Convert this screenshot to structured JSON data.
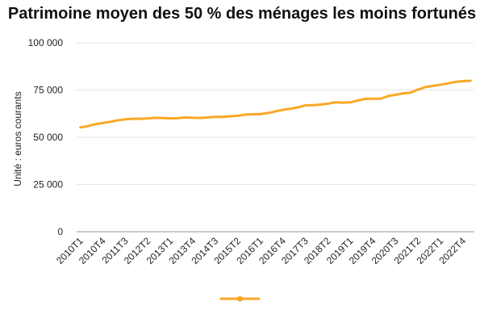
{
  "chart_data": {
    "type": "line",
    "title": "Patrimoine moyen des 50 % des ménages les moins fortunés",
    "xlabel": "",
    "ylabel": "Unité : euros courants",
    "ylim": [
      0,
      100000
    ],
    "y_ticks": [
      0,
      25000,
      50000,
      75000,
      100000
    ],
    "y_tick_labels": [
      "0",
      "25 000",
      "50 000",
      "75 000",
      "100 000"
    ],
    "x_tick_labels": [
      "2010T1",
      "2010T4",
      "2011T3",
      "2012T2",
      "2013T1",
      "2013T4",
      "2014T3",
      "2015T2",
      "2016T1",
      "2016T4",
      "2017T3",
      "2018T2",
      "2019T1",
      "2019T4",
      "2020T3",
      "2021T2",
      "2022T1",
      "2022T4"
    ],
    "grid": true,
    "legend": "bottom",
    "colors": {
      "line": "#F9A825",
      "grid": "#E6E6E6",
      "axis": "#999999"
    },
    "categories": [
      "2010T1",
      "2010T2",
      "2010T3",
      "2010T4",
      "2011T1",
      "2011T2",
      "2011T3",
      "2011T4",
      "2012T1",
      "2012T2",
      "2012T3",
      "2012T4",
      "2013T1",
      "2013T2",
      "2013T3",
      "2013T4",
      "2014T1",
      "2014T2",
      "2014T3",
      "2014T4",
      "2015T1",
      "2015T2",
      "2015T3",
      "2015T4",
      "2016T1",
      "2016T2",
      "2016T3",
      "2016T4",
      "2017T1",
      "2017T2",
      "2017T3",
      "2017T4",
      "2018T1",
      "2018T2",
      "2018T3",
      "2018T4",
      "2019T1",
      "2019T2",
      "2019T3",
      "2019T4",
      "2020T1",
      "2020T2",
      "2020T3",
      "2020T4",
      "2021T1",
      "2021T2",
      "2021T3",
      "2021T4",
      "2022T1",
      "2022T2",
      "2022T3",
      "2022T4",
      "2023T1"
    ],
    "series": [
      {
        "values": [
          55200,
          55900,
          56900,
          57600,
          58200,
          59000,
          59500,
          59800,
          59800,
          60000,
          60300,
          60200,
          60000,
          60100,
          60500,
          60300,
          60200,
          60500,
          60800,
          60800,
          61100,
          61400,
          62000,
          62200,
          62300,
          62800,
          63700,
          64500,
          65100,
          65800,
          66900,
          67000,
          67300,
          67800,
          68500,
          68300,
          68500,
          69500,
          70300,
          70400,
          70400,
          71800,
          72500,
          73200,
          73600,
          75200,
          76600,
          77200,
          77800,
          78500,
          79300,
          79700,
          79900
        ]
      }
    ]
  }
}
